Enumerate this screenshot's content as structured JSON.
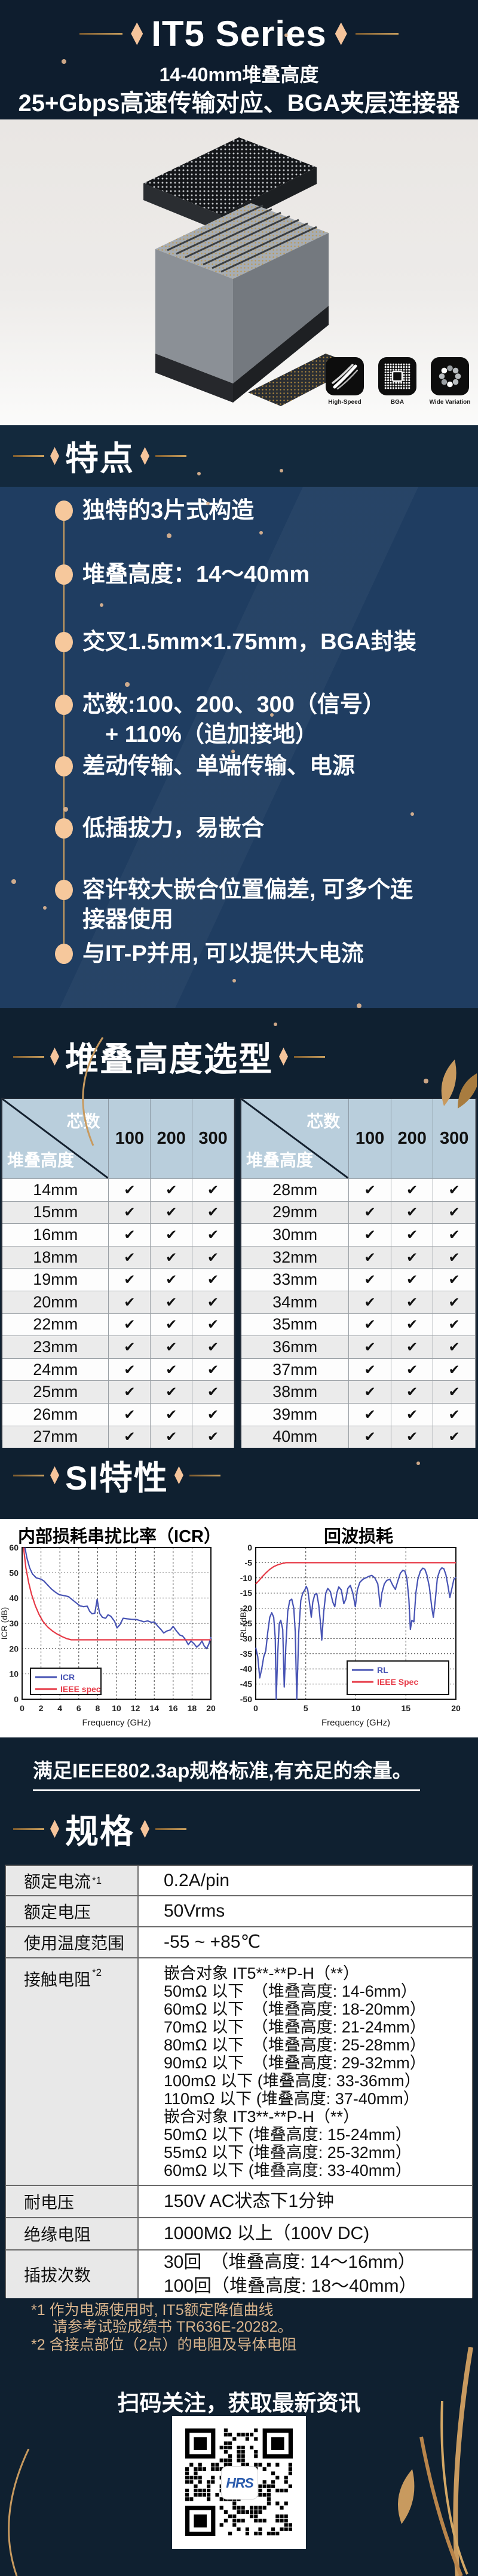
{
  "header": {
    "title": "IT5 Series",
    "subtitle": "14-40mm堆叠高度",
    "tagline": "25+Gbps高速传输对应、BGA夹层连接器"
  },
  "badges": [
    {
      "icon": "high-speed-icon",
      "label": "High-Speed"
    },
    {
      "icon": "bga-grid-icon",
      "label": "BGA"
    },
    {
      "icon": "wide-variation-icon",
      "label": "Wide Variation"
    }
  ],
  "features": {
    "heading": "特点",
    "items": [
      "独特的3片式构造",
      "堆叠高度：14～40mm",
      "交叉1.5mm×1.75mm，BGA封装",
      "芯数:100、200、300（信号）\n　+ 110%（追加接地）",
      "差动传输、单端传输、电源",
      "低插拔力，易嵌合",
      "容许较大嵌合位置偏差, 可多个连\n接器使用",
      "与IT-P并用, 可以提供大电流"
    ]
  },
  "stack": {
    "heading": "堆叠高度选型",
    "corner_top": "芯数",
    "corner_bottom": "堆叠高度",
    "columns": [
      "100",
      "200",
      "300"
    ],
    "check_mark": "✔",
    "left_rows": [
      "14mm",
      "15mm",
      "16mm",
      "18mm",
      "19mm",
      "20mm",
      "22mm",
      "23mm",
      "24mm",
      "25mm",
      "26mm",
      "27mm"
    ],
    "right_rows": [
      "28mm",
      "29mm",
      "30mm",
      "32mm",
      "33mm",
      "34mm",
      "35mm",
      "36mm",
      "37mm",
      "38mm",
      "39mm",
      "40mm"
    ]
  },
  "si": {
    "heading": "SI特性",
    "note": "满足IEEE802.3ap规格标准,有充足的余量。"
  },
  "chart_data": [
    {
      "type": "line",
      "title": "内部损耗串扰比率（ICR）",
      "xlabel": "Frequency (GHz)",
      "ylabel": "ICR (dB)",
      "xlim": [
        0,
        20
      ],
      "ylim": [
        0,
        60
      ],
      "xticks": [
        0,
        2,
        4,
        6,
        8,
        10,
        12,
        14,
        16,
        18,
        20
      ],
      "yticks": [
        0,
        10,
        20,
        30,
        40,
        50,
        60
      ],
      "grid": true,
      "legend_position": "bottom-left",
      "series": [
        {
          "name": "ICR",
          "color": "#4753b4",
          "points": [
            [
              0.3,
              60
            ],
            [
              0.5,
              56
            ],
            [
              0.8,
              52
            ],
            [
              1.1,
              49.5
            ],
            [
              1.5,
              48
            ],
            [
              2,
              47.5
            ],
            [
              2.3,
              46.8
            ],
            [
              2.7,
              45.2
            ],
            [
              3.1,
              43.6
            ],
            [
              3.5,
              42.4
            ],
            [
              3.9,
              41.4
            ],
            [
              4.4,
              41
            ],
            [
              4.9,
              40.6
            ],
            [
              5.3,
              39.4
            ],
            [
              5.7,
              38.2
            ],
            [
              6.1,
              37
            ],
            [
              6.5,
              36.6
            ],
            [
              6.9,
              36.8
            ],
            [
              7.15,
              34.8
            ],
            [
              7.4,
              33.8
            ],
            [
              7.7,
              34
            ],
            [
              7.95,
              39.5
            ],
            [
              8.2,
              34
            ],
            [
              8.5,
              32.4
            ],
            [
              8.85,
              32
            ],
            [
              9.1,
              33.4
            ],
            [
              9.4,
              32.8
            ],
            [
              9.8,
              30.8
            ],
            [
              10.05,
              28.2
            ],
            [
              10.35,
              29.4
            ],
            [
              10.7,
              32
            ],
            [
              11.1,
              31.8
            ],
            [
              11.6,
              31.6
            ],
            [
              12.1,
              31.5
            ],
            [
              12.6,
              31
            ],
            [
              12.9,
              30.6
            ],
            [
              13.3,
              31
            ],
            [
              13.7,
              30.4
            ],
            [
              14,
              30.6
            ],
            [
              14.35,
              29
            ],
            [
              14.7,
              27.6
            ],
            [
              15,
              26.2
            ],
            [
              15.35,
              27
            ],
            [
              15.7,
              27.4
            ],
            [
              16,
              28.8
            ],
            [
              16.35,
              27
            ],
            [
              16.7,
              25.4
            ],
            [
              17,
              25
            ],
            [
              17.3,
              23.6
            ],
            [
              17.6,
              21.6
            ],
            [
              17.9,
              23
            ],
            [
              18.2,
              22
            ],
            [
              18.5,
              20.6
            ],
            [
              18.8,
              21.6
            ],
            [
              19.05,
              23
            ],
            [
              19.3,
              21
            ],
            [
              19.55,
              20
            ],
            [
              19.8,
              22
            ],
            [
              20,
              24.6
            ]
          ]
        },
        {
          "name": "IEEE spec",
          "color": "#e63946",
          "points": [
            [
              0.15,
              60
            ],
            [
              0.4,
              52
            ],
            [
              0.7,
              46
            ],
            [
              1,
              41.5
            ],
            [
              1.4,
              37
            ],
            [
              1.8,
              33.5
            ],
            [
              2.2,
              30.8
            ],
            [
              2.7,
              28.6
            ],
            [
              3.2,
              27
            ],
            [
              3.7,
              25.8
            ],
            [
              4.2,
              24.8
            ],
            [
              4.7,
              24
            ],
            [
              5.2,
              23.5
            ],
            [
              20,
              23.5
            ]
          ]
        }
      ]
    },
    {
      "type": "line",
      "title": "回波损耗",
      "xlabel": "Frequency (GHz)",
      "ylabel": "RL (dB)",
      "xlim": [
        0,
        20
      ],
      "ylim": [
        -50,
        0
      ],
      "xticks": [
        0,
        5,
        10,
        15,
        20
      ],
      "yticks": [
        0,
        -5,
        -10,
        -15,
        -20,
        -25,
        -30,
        -35,
        -40,
        -45,
        -50
      ],
      "grid": true,
      "legend_position": "bottom-right",
      "series": [
        {
          "name": "RL",
          "color": "#4753b4",
          "points": [
            [
              0,
              -33
            ],
            [
              0.2,
              -36
            ],
            [
              0.4,
              -43
            ],
            [
              0.6,
              -40
            ],
            [
              0.8,
              -36
            ],
            [
              1,
              -34
            ],
            [
              1.2,
              -28
            ],
            [
              1.4,
              -23
            ],
            [
              1.6,
              -21.5
            ],
            [
              1.8,
              -23
            ],
            [
              1.95,
              -30
            ],
            [
              2.05,
              -50
            ],
            [
              2.2,
              -35
            ],
            [
              2.35,
              -25
            ],
            [
              2.5,
              -24
            ],
            [
              2.7,
              -27
            ],
            [
              2.85,
              -46
            ],
            [
              3,
              -33
            ],
            [
              3.2,
              -21
            ],
            [
              3.4,
              -17.5
            ],
            [
              3.6,
              -17
            ],
            [
              3.8,
              -20
            ],
            [
              3.95,
              -28
            ],
            [
              4.1,
              -50
            ],
            [
              4.3,
              -28
            ],
            [
              4.5,
              -17.5
            ],
            [
              4.7,
              -15
            ],
            [
              4.9,
              -14
            ],
            [
              5.05,
              -12.8
            ],
            [
              5.2,
              -14
            ],
            [
              5.4,
              -19
            ],
            [
              5.55,
              -23
            ],
            [
              5.7,
              -18
            ],
            [
              5.9,
              -15.5
            ],
            [
              6.1,
              -15.2
            ],
            [
              6.3,
              -19
            ],
            [
              6.5,
              -26
            ],
            [
              6.6,
              -30.5
            ],
            [
              6.8,
              -21
            ],
            [
              7,
              -15
            ],
            [
              7.2,
              -13.5
            ],
            [
              7.45,
              -14.5
            ],
            [
              7.7,
              -18
            ],
            [
              7.9,
              -19.5
            ],
            [
              8.1,
              -15
            ],
            [
              8.3,
              -13
            ],
            [
              8.55,
              -14
            ],
            [
              8.8,
              -18.5
            ],
            [
              9,
              -17
            ],
            [
              9.2,
              -13.5
            ],
            [
              9.45,
              -12.5
            ],
            [
              9.7,
              -15
            ],
            [
              9.95,
              -19.5
            ],
            [
              10.15,
              -14
            ],
            [
              10.4,
              -11.5
            ],
            [
              10.7,
              -10.5
            ],
            [
              11,
              -10
            ],
            [
              11.3,
              -9.5
            ],
            [
              11.6,
              -9.2
            ],
            [
              11.9,
              -10
            ],
            [
              12.2,
              -12
            ],
            [
              12.45,
              -19.5
            ],
            [
              12.6,
              -15
            ],
            [
              12.85,
              -12
            ],
            [
              13.1,
              -10.8
            ],
            [
              13.4,
              -10.5
            ],
            [
              13.7,
              -12.5
            ],
            [
              13.95,
              -13.8
            ],
            [
              14.2,
              -11
            ],
            [
              14.45,
              -8.5
            ],
            [
              14.7,
              -7.5
            ],
            [
              14.9,
              -7.8
            ],
            [
              15.1,
              -10
            ],
            [
              15.3,
              -17
            ],
            [
              15.45,
              -27
            ],
            [
              15.6,
              -24
            ],
            [
              15.8,
              -24.5
            ],
            [
              16,
              -15
            ],
            [
              16.2,
              -10.5
            ],
            [
              16.45,
              -7.8
            ],
            [
              16.7,
              -6.8
            ],
            [
              16.9,
              -7.2
            ],
            [
              17.1,
              -9
            ],
            [
              17.35,
              -13
            ],
            [
              17.6,
              -20
            ],
            [
              17.75,
              -23
            ],
            [
              17.95,
              -17
            ],
            [
              18.15,
              -10
            ],
            [
              18.4,
              -7.5
            ],
            [
              18.6,
              -6.7
            ],
            [
              18.8,
              -7
            ],
            [
              19,
              -9
            ],
            [
              19.2,
              -12.5
            ],
            [
              19.4,
              -16.5
            ],
            [
              19.6,
              -13.5
            ],
            [
              19.8,
              -10.5
            ],
            [
              20,
              -9.8
            ]
          ]
        },
        {
          "name": "IEEE Spec",
          "color": "#e63946",
          "points": [
            [
              0,
              -12
            ],
            [
              0.3,
              -11
            ],
            [
              0.6,
              -9.8
            ],
            [
              1,
              -8.4
            ],
            [
              1.4,
              -7.2
            ],
            [
              1.8,
              -6.3
            ],
            [
              2.2,
              -5.7
            ],
            [
              2.6,
              -5.3
            ],
            [
              3,
              -5
            ],
            [
              20,
              -5
            ]
          ]
        }
      ]
    }
  ],
  "specs": {
    "heading": "规格",
    "rows": [
      {
        "label": "额定电流",
        "sup": "*1",
        "lines": [
          "0.2A/pin"
        ]
      },
      {
        "label": "额定电压",
        "sup": "",
        "lines": [
          "50Vrms"
        ]
      },
      {
        "label": "使用温度范围",
        "sup": "",
        "lines": [
          "-55 ~ +85℃"
        ]
      },
      {
        "label": "接触电阻",
        "sup": "*2",
        "lines": [
          "嵌合对象 IT5**-**P-H（**）",
          "50mΩ 以下　（堆叠高度: 14-6mm）",
          "60mΩ 以下　（堆叠高度: 18-20mm）",
          "70mΩ 以下　（堆叠高度: 21-24mm）",
          "80mΩ 以下　（堆叠高度: 25-28mm）",
          "90mΩ 以下　（堆叠高度: 29-32mm）",
          "100mΩ 以下 (堆叠高度: 33-36mm）",
          "110mΩ 以下 (堆叠高度: 37-40mm）",
          "嵌合对象 IT3**-**P-H（**）",
          "50mΩ 以下 (堆叠高度: 15-24mm）",
          "55mΩ 以下 (堆叠高度: 25-32mm）",
          "60mΩ 以下 (堆叠高度: 33-40mm）"
        ]
      },
      {
        "label": "耐电压",
        "sup": "",
        "lines": [
          "150V AC状态下1分钟"
        ]
      },
      {
        "label": "绝缘电阻",
        "sup": "",
        "lines": [
          "1000MΩ 以上（100V DC)"
        ]
      },
      {
        "label": "插拔次数",
        "sup": "",
        "lines": [
          "30回　（堆叠高度: 14～16mm）",
          "100回（堆叠高度: 18～40mm）"
        ]
      }
    ],
    "footnotes": [
      "*1  作为电源使用时, IT5额定降值曲线",
      "请参考试验成绩书 TR636E-20282。",
      "*2   含接点部位（2点）的电阻及导体电阻"
    ]
  },
  "footer": {
    "cta": "扫码关注，获取最新资讯",
    "qr_label": "HRS"
  },
  "colors": {
    "page_navy": "#0f2030",
    "band_navy": "#13293d",
    "feature_blue": "#1f3d61",
    "accent_gold": "#c89a5f",
    "accent_peach": "#f5c49b",
    "table_header_blue": "#b9cedc",
    "chart_blue": "#4753b4",
    "chart_red": "#e63946",
    "hrs_blue": "#2b5cad"
  }
}
